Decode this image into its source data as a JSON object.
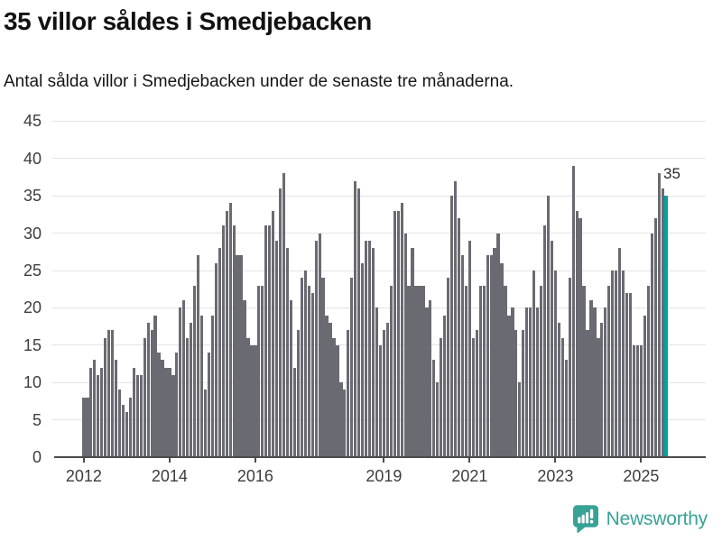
{
  "header": {
    "title": "35 villor såldes i Smedjebacken",
    "subtitle": "Antal sålda villor i Smedjebacken under de senaste tre månaderna."
  },
  "chart_data": {
    "type": "bar",
    "title": "35 villor såldes i Smedjebacken",
    "subtitle": "Antal sålda villor i Smedjebacken under de senaste tre månaderna.",
    "frequency": "monthly",
    "x_start": "2012-01",
    "x_end": "2025-08",
    "xlabel": "",
    "ylabel": "",
    "ylim": [
      0,
      45
    ],
    "grid": "horizontal",
    "y_ticks": [
      0,
      5,
      10,
      15,
      20,
      25,
      30,
      35,
      40,
      45
    ],
    "x_tick_labels": [
      "2012",
      "2014",
      "2016",
      "2019",
      "2021",
      "2023",
      "2025"
    ],
    "values": [
      8,
      8,
      12,
      13,
      11,
      12,
      16,
      17,
      17,
      13,
      9,
      7,
      6,
      8,
      12,
      11,
      11,
      16,
      18,
      17,
      19,
      14,
      13,
      12,
      12,
      11,
      14,
      20,
      21,
      16,
      18,
      23,
      27,
      19,
      9,
      14,
      19,
      26,
      28,
      31,
      33,
      34,
      31,
      27,
      27,
      21,
      16,
      15,
      15,
      23,
      23,
      31,
      31,
      33,
      29,
      36,
      38,
      28,
      21,
      12,
      17,
      24,
      25,
      23,
      22,
      29,
      30,
      24,
      19,
      18,
      16,
      15,
      10,
      9,
      17,
      24,
      37,
      36,
      26,
      29,
      29,
      28,
      20,
      15,
      17,
      18,
      23,
      33,
      33,
      34,
      30,
      23,
      28,
      23,
      23,
      23,
      20,
      21,
      13,
      10,
      16,
      19,
      24,
      35,
      37,
      32,
      27,
      23,
      29,
      16,
      17,
      23,
      23,
      27,
      27,
      28,
      30,
      26,
      23,
      19,
      20,
      17,
      10,
      17,
      20,
      20,
      25,
      20,
      23,
      31,
      35,
      29,
      25,
      18,
      16,
      13,
      24,
      39,
      33,
      32,
      23,
      17,
      21,
      20,
      16,
      18,
      20,
      23,
      25,
      25,
      28,
      25,
      22,
      22,
      15,
      15,
      15,
      19,
      23,
      30,
      32,
      38,
      36,
      35
    ],
    "highlight_last": true,
    "annotation": {
      "text": "35",
      "value": 35
    },
    "legend": "none"
  },
  "colors": {
    "bar": "#6a6a72",
    "highlight": "#00a2a2",
    "grid": "#e4e4e4",
    "axis": "#4b4b4b",
    "tick_text": "#3d3d3d",
    "annotation_text": "#26282a",
    "brand": "#38a297"
  },
  "footer": {
    "brand": "Newsworthy"
  }
}
